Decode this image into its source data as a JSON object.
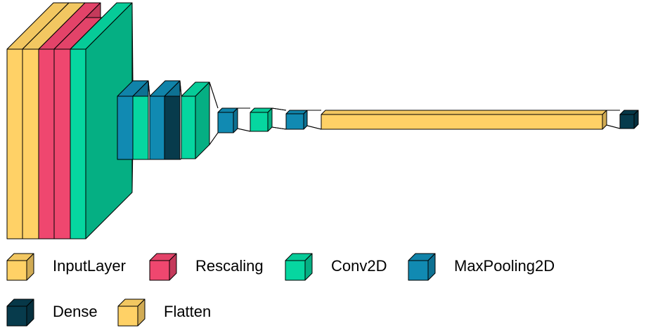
{
  "colors": {
    "InputLayer": "#FFD166",
    "Rescaling": "#EF476F",
    "Conv2D": "#06D6A0",
    "MaxPooling2D": "#118AB2",
    "Dense": "#073B4C",
    "Flatten": "#FFD166",
    "outline": "#000000"
  },
  "layers": [
    {
      "type": "InputLayer",
      "label": "InputLayer"
    },
    {
      "type": "Rescaling",
      "label": "Rescaling"
    },
    {
      "type": "Conv2D",
      "label": "Conv2D"
    },
    {
      "type": "MaxPooling2D",
      "label": "MaxPooling2D"
    },
    {
      "type": "Conv2D",
      "label": "Conv2D"
    },
    {
      "type": "MaxPooling2D",
      "label": "MaxPooling2D"
    },
    {
      "type": "Dense",
      "label": "Dense"
    },
    {
      "type": "Conv2D",
      "label": "Conv2D"
    },
    {
      "type": "MaxPooling2D",
      "label": "MaxPooling2D"
    },
    {
      "type": "Conv2D",
      "label": "Conv2D"
    },
    {
      "type": "MaxPooling2D",
      "label": "MaxPooling2D"
    },
    {
      "type": "Flatten",
      "label": "Flatten"
    },
    {
      "type": "Dense",
      "label": "Dense"
    }
  ],
  "legend": [
    {
      "label": "InputLayer",
      "type": "InputLayer"
    },
    {
      "label": "Rescaling",
      "type": "Rescaling"
    },
    {
      "label": "Conv2D",
      "type": "Conv2D"
    },
    {
      "label": "MaxPooling2D",
      "type": "MaxPooling2D"
    },
    {
      "label": "Dense",
      "type": "Dense"
    },
    {
      "label": "Flatten",
      "type": "Flatten"
    }
  ]
}
